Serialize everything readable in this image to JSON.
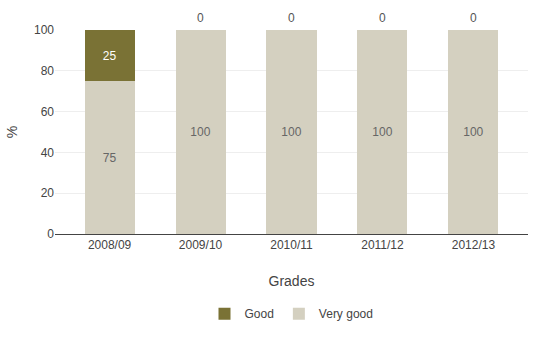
{
  "chart_data": {
    "type": "bar",
    "stacked": true,
    "xlabel": "Grades",
    "ylabel": "%",
    "categories": [
      "2008/09",
      "2009/10",
      "2010/11",
      "2011/12",
      "2012/13"
    ],
    "series": [
      {
        "name": "Very good",
        "color": "#d4d0c0",
        "values": [
          75,
          100,
          100,
          100,
          100
        ]
      },
      {
        "name": "Good",
        "color": "#7a7235",
        "values": [
          25,
          0,
          0,
          0,
          0
        ]
      }
    ],
    "ylim": [
      0,
      100
    ],
    "yticks": [
      0,
      20,
      40,
      60,
      80,
      100
    ],
    "grid": true,
    "legend": "bottom",
    "data_labels": true
  }
}
